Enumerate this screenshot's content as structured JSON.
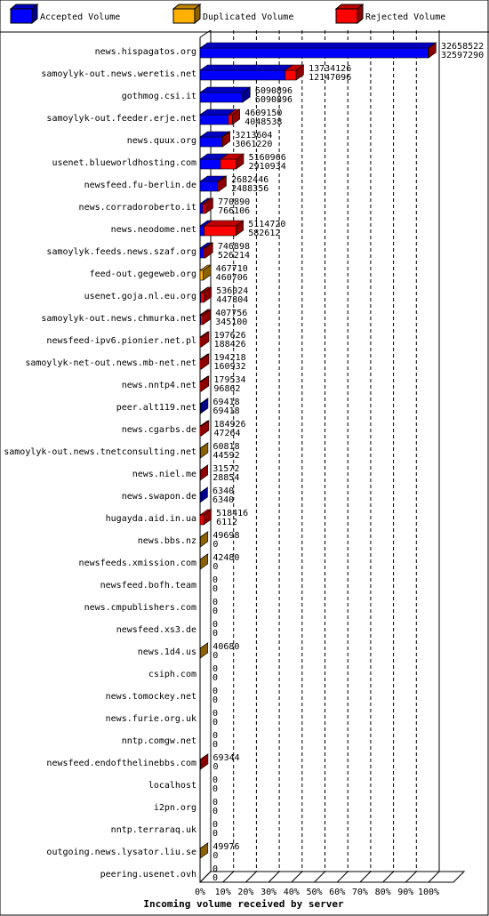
{
  "chart_data": {
    "type": "stacked-bar-3d",
    "orientation": "horizontal",
    "title": "Incoming volume received by server",
    "categories": [
      "news.hispagatos.org",
      "samoylyk-out.news.weretis.net",
      "gothmog.csi.it",
      "samoylyk-out.feeder.erje.net",
      "news.quux.org",
      "usenet.blueworldhosting.com",
      "newsfeed.fu-berlin.de",
      "news.corradoroberto.it",
      "news.neodome.net",
      "samoylyk.feeds.news.szaf.org",
      "feed-out.gegeweb.org",
      "usenet.goja.nl.eu.org",
      "samoylyk-out.news.chmurka.net",
      "newsfeed-ipv6.pionier.net.pl",
      "samoylyk-net-out.news.mb-net.net",
      "news.nntp4.net",
      "peer.alt119.net",
      "news.cgarbs.de",
      "samoylyk-out.news.tnetconsulting.net",
      "news.niel.me",
      "news.swapon.de",
      "hugayda.aid.in.ua",
      "news.bbs.nz",
      "newsfeeds.xmission.com",
      "newsfeed.bofh.team",
      "news.cmpublishers.com",
      "newsfeed.xs3.de",
      "news.1d4.us",
      "csiph.com",
      "news.tomockey.net",
      "news.furie.org.uk",
      "nntp.comgw.net",
      "newsfeed.endofthelinebbs.com",
      "localhost",
      "i2pn.org",
      "nntp.terraraq.uk",
      "outgoing.news.lysator.liu.se",
      "peering.usenet.ovh"
    ],
    "series": [
      {
        "name": "Accepted Volume",
        "color": "#0000ff",
        "values": [
          99.81,
          37.19,
          18.65,
          12.4,
          9.37,
          8.91,
          7.62,
          1.2,
          1.78,
          1.61,
          0,
          0.3,
          0.3,
          0,
          0,
          0,
          0.21,
          0,
          0,
          0,
          0.02,
          0,
          0,
          0,
          0,
          0,
          0,
          0,
          0,
          0,
          0,
          0,
          0,
          0,
          0,
          0,
          0,
          0
        ]
      },
      {
        "name": "Duplicated Volume",
        "color": "#ffb000",
        "values": [
          0,
          0,
          0,
          0,
          0,
          0,
          0,
          0,
          0,
          0,
          1.43,
          0,
          0,
          0,
          0,
          0,
          0,
          0,
          0.19,
          0,
          0,
          0,
          0.15,
          0.13,
          0,
          0,
          0,
          0.12,
          0,
          0,
          0,
          0,
          0,
          0,
          0,
          0,
          0.15,
          0
        ]
      },
      {
        "name": "Rejected Volume",
        "color": "#ff0000",
        "values": [
          0.19,
          4.86,
          0,
          1.71,
          0.47,
          6.89,
          0.59,
          1.16,
          13.88,
          0.68,
          0,
          1.34,
          0.95,
          0.61,
          0.59,
          0.55,
          0,
          0.57,
          0,
          0.1,
          0,
          1.59,
          0,
          0,
          0,
          0,
          0,
          0,
          0,
          0,
          0,
          0,
          0.21,
          0,
          0,
          0,
          0,
          0
        ]
      }
    ],
    "upper_labels": [
      32658522,
      13734126,
      6090896,
      4609150,
      3213604,
      5160966,
      2682446,
      770890,
      5114720,
      746898,
      467710,
      536024,
      407756,
      197626,
      194218,
      179534,
      69418,
      184926,
      60818,
      31572,
      6340,
      518416,
      49698,
      42480,
      0,
      0,
      0,
      40680,
      0,
      0,
      0,
      0,
      69344,
      0,
      0,
      0,
      49976,
      0
    ],
    "lower_labels": [
      32597290,
      12147096,
      6090896,
      4048538,
      3061220,
      2910934,
      2488356,
      766106,
      582612,
      526214,
      460706,
      447804,
      345100,
      188426,
      160932,
      96862,
      69418,
      47264,
      44592,
      28854,
      6340,
      6112,
      0,
      0,
      0,
      0,
      0,
      0,
      0,
      0,
      0,
      0,
      0,
      0,
      0,
      0,
      0,
      0
    ],
    "xlim": [
      0,
      100
    ],
    "xticks": [
      {
        "value": 0,
        "label": "0%"
      },
      {
        "value": 10,
        "label": "10%"
      },
      {
        "value": 20,
        "label": "20%"
      },
      {
        "value": 30,
        "label": "30%"
      },
      {
        "value": 40,
        "label": "40%"
      },
      {
        "value": 50,
        "label": "50%"
      },
      {
        "value": 60,
        "label": "60%"
      },
      {
        "value": 70,
        "label": "70%"
      },
      {
        "value": 80,
        "label": "80%"
      },
      {
        "value": 90,
        "label": "90%"
      },
      {
        "value": 100,
        "label": "100%"
      }
    ],
    "grid": true,
    "legend": "top"
  }
}
